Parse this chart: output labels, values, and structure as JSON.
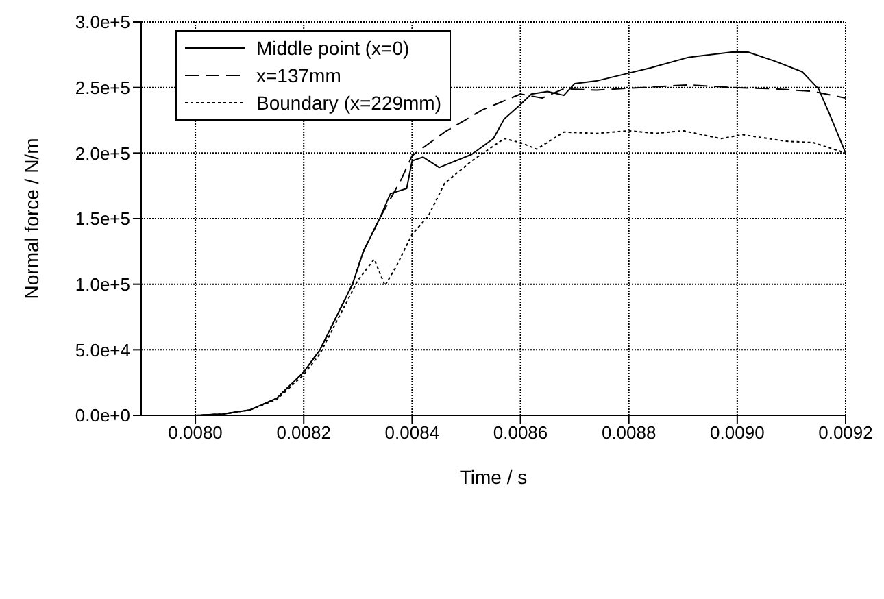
{
  "chart_data": {
    "type": "line",
    "xlabel": "Time / s",
    "ylabel": "Normal force / N/m",
    "xlim": [
      0.0079,
      0.0092
    ],
    "ylim": [
      0,
      300000
    ],
    "xticks": [
      {
        "value": 0.008,
        "label": "0.0080"
      },
      {
        "value": 0.0082,
        "label": "0.0082"
      },
      {
        "value": 0.0084,
        "label": "0.0084"
      },
      {
        "value": 0.0086,
        "label": "0.0086"
      },
      {
        "value": 0.0088,
        "label": "0.0088"
      },
      {
        "value": 0.009,
        "label": "0.0090"
      },
      {
        "value": 0.0092,
        "label": "0.0092"
      }
    ],
    "yticks": [
      {
        "value": 0,
        "label": "0.0e+0"
      },
      {
        "value": 50000,
        "label": "5.0e+4"
      },
      {
        "value": 100000,
        "label": "1.0e+5"
      },
      {
        "value": 150000,
        "label": "1.5e+5"
      },
      {
        "value": 200000,
        "label": "2.0e+5"
      },
      {
        "value": 250000,
        "label": "2.5e+5"
      },
      {
        "value": 300000,
        "label": "3.0e+5"
      }
    ],
    "grid": true,
    "legend": "top left",
    "marker": "none",
    "series": [
      {
        "name": "Middle point (x=0)",
        "color": "#000000",
        "line_style": "solid",
        "x": [
          0.0079,
          0.008,
          0.00805,
          0.0081,
          0.00815,
          0.0082,
          0.00823,
          0.00826,
          0.00829,
          0.00831,
          0.00834,
          0.00836,
          0.00839,
          0.0084,
          0.00842,
          0.00845,
          0.00851,
          0.00855,
          0.00857,
          0.0086,
          0.00862,
          0.00865,
          0.00868,
          0.0087,
          0.00874,
          0.0088,
          0.00884,
          0.00891,
          0.00899,
          0.00902,
          0.00907,
          0.00912,
          0.00915,
          0.00917,
          0.0092
        ],
        "values": [
          0,
          0,
          1000,
          4000,
          13000,
          33000,
          50000,
          75000,
          100000,
          125000,
          150000,
          169000,
          173000,
          194000,
          197000,
          189000,
          199000,
          211000,
          226000,
          237000,
          245000,
          247000,
          244000,
          253000,
          255000,
          261000,
          265000,
          273000,
          277000,
          277000,
          270000,
          262000,
          249000,
          230000,
          200000
        ]
      },
      {
        "name": "x=137mm",
        "color": "#000000",
        "line_style": "dashed",
        "x": [
          0.0079,
          0.008,
          0.00805,
          0.0081,
          0.00815,
          0.0082,
          0.00823,
          0.00826,
          0.00829,
          0.00831,
          0.00834,
          0.00838,
          0.0084,
          0.00846,
          0.00853,
          0.0086,
          0.00864,
          0.00868,
          0.00874,
          0.00891,
          0.00899,
          0.00907,
          0.00914,
          0.0092
        ],
        "values": [
          0,
          0,
          1000,
          4000,
          13000,
          33000,
          50000,
          75000,
          100000,
          125000,
          150000,
          180000,
          198000,
          216000,
          233000,
          245000,
          242000,
          249000,
          248000,
          252000,
          250000,
          249000,
          247000,
          242000
        ]
      },
      {
        "name": "Boundary (x=229mm)",
        "color": "#000000",
        "line_style": "dotted",
        "x": [
          0.0079,
          0.008,
          0.00805,
          0.0081,
          0.00815,
          0.0082,
          0.00823,
          0.00826,
          0.0083,
          0.00833,
          0.00835,
          0.00837,
          0.0084,
          0.00843,
          0.00846,
          0.00851,
          0.00857,
          0.0086,
          0.00863,
          0.00868,
          0.00874,
          0.0088,
          0.00885,
          0.0089,
          0.00897,
          0.00901,
          0.00909,
          0.00914,
          0.0092
        ],
        "values": [
          0,
          0,
          1000,
          4000,
          12000,
          31000,
          47000,
          71000,
          103000,
          119000,
          99000,
          113000,
          138000,
          152000,
          177000,
          194000,
          211000,
          208000,
          203000,
          216000,
          215000,
          217000,
          215000,
          217000,
          211000,
          214000,
          209000,
          208000,
          200000
        ]
      }
    ]
  }
}
